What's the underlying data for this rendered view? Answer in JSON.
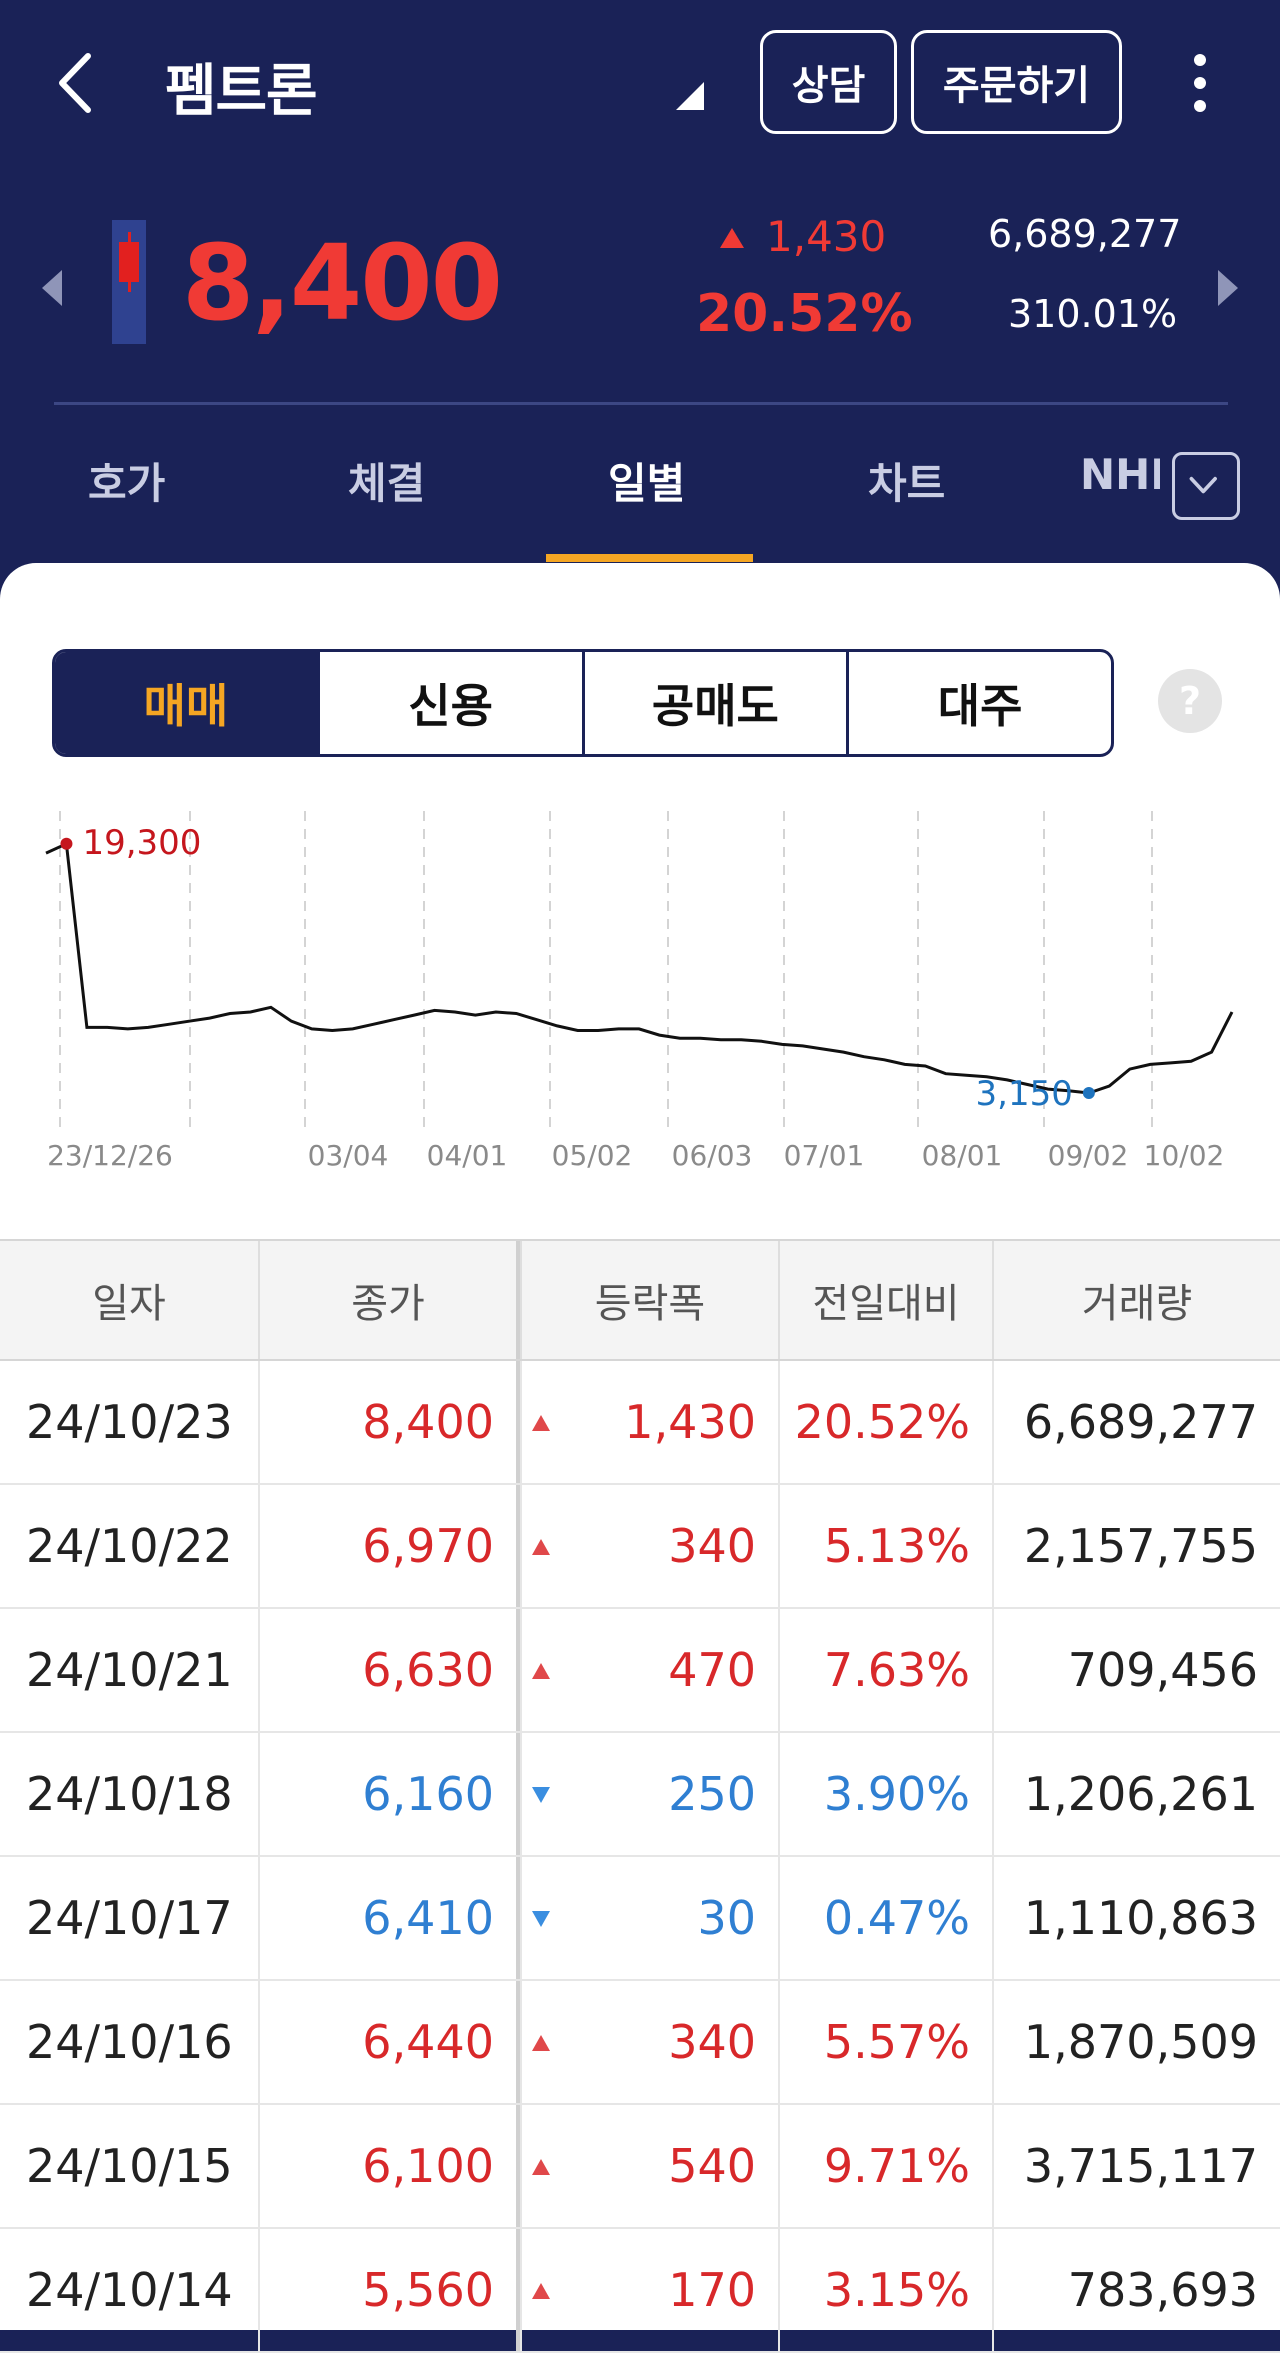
{
  "header": {
    "stock_name": "펨트론",
    "consult_label": "상담",
    "order_label": "주문하기",
    "price": "8,400",
    "change": "1,430",
    "change_pct": "20.52%",
    "volume": "6,689,277",
    "volume_pct": "310.01%",
    "price_color": "#f03a35"
  },
  "tabs": [
    {
      "label": "호가"
    },
    {
      "label": "체결"
    },
    {
      "label": "일별"
    },
    {
      "label": "차트"
    },
    {
      "label": "NHP"
    }
  ],
  "active_tab": "일별",
  "segments": [
    {
      "label": "매매"
    },
    {
      "label": "신용"
    },
    {
      "label": "공매도"
    },
    {
      "label": "대주"
    }
  ],
  "active_segment": "매매",
  "chart_data": {
    "type": "line",
    "max_label": "19,300",
    "min_label": "3,150",
    "x_ticks": [
      "23/12/26",
      "03/04",
      "04/01",
      "05/02",
      "06/03",
      "07/01",
      "08/01",
      "09/02",
      "10/02"
    ],
    "series": [
      {
        "values": [
          18700,
          19300,
          7400,
          7400,
          7300,
          7400,
          7600,
          7800,
          8000,
          8300,
          8400,
          8700,
          7800,
          7300,
          7200,
          7300,
          7600,
          7900,
          8200,
          8500,
          8400,
          8200,
          8400,
          8300,
          7900,
          7500,
          7200,
          7200,
          7300,
          7300,
          6900,
          6700,
          6700,
          6600,
          6600,
          6500,
          6300,
          6200,
          6000,
          5800,
          5500,
          5300,
          5000,
          4900,
          4400,
          4300,
          4200,
          4000,
          3700,
          3400,
          3300,
          3150,
          3600,
          4700,
          5000,
          5100,
          5200,
          5800,
          8400
        ]
      }
    ],
    "ylim": [
      2500,
      20000
    ],
    "colors": {
      "line": "#111111",
      "max": "#c5161d",
      "min": "#1e73be"
    }
  },
  "table": {
    "headers": [
      "일자",
      "종가",
      "등락폭",
      "전일대비",
      "거래량"
    ],
    "rows": [
      {
        "date": "24/10/23",
        "close": "8,400",
        "change": "1,430",
        "pct": "20.52%",
        "volume": "6,689,277",
        "dir": "up"
      },
      {
        "date": "24/10/22",
        "close": "6,970",
        "change": "340",
        "pct": "5.13%",
        "volume": "2,157,755",
        "dir": "up"
      },
      {
        "date": "24/10/21",
        "close": "6,630",
        "change": "470",
        "pct": "7.63%",
        "volume": "709,456",
        "dir": "up"
      },
      {
        "date": "24/10/18",
        "close": "6,160",
        "change": "250",
        "pct": "3.90%",
        "volume": "1,206,261",
        "dir": "down"
      },
      {
        "date": "24/10/17",
        "close": "6,410",
        "change": "30",
        "pct": "0.47%",
        "volume": "1,110,863",
        "dir": "down"
      },
      {
        "date": "24/10/16",
        "close": "6,440",
        "change": "340",
        "pct": "5.57%",
        "volume": "1,870,509",
        "dir": "up"
      },
      {
        "date": "24/10/15",
        "close": "6,100",
        "change": "540",
        "pct": "9.71%",
        "volume": "3,715,117",
        "dir": "up"
      },
      {
        "date": "24/10/14",
        "close": "5,560",
        "change": "170",
        "pct": "3.15%",
        "volume": "783,693",
        "dir": "up"
      }
    ]
  }
}
